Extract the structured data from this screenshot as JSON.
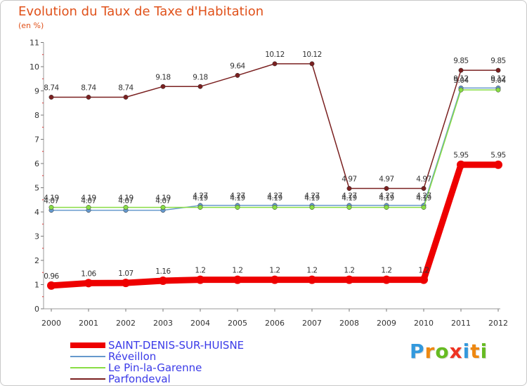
{
  "chart_data": {
    "type": "line",
    "title": "Evolution du Taux de Taxe d'Habitation",
    "subtitle": "(en %)",
    "x": [
      "2000",
      "2001",
      "2002",
      "2003",
      "2004",
      "2005",
      "2006",
      "2007",
      "2008",
      "2009",
      "2010",
      "2011",
      "2012"
    ],
    "ylim": [
      0,
      11
    ],
    "yticks": [
      "0",
      "1",
      "2",
      "3",
      "4",
      "5",
      "6",
      "7",
      "8",
      "9",
      "10",
      "11"
    ],
    "grid": false,
    "legend_position": "bottom-left",
    "series": [
      {
        "name": "SAINT-DENIS-SUR-HUISNE",
        "color": "#ee0000",
        "values": [
          0.96,
          1.06,
          1.07,
          1.16,
          1.2,
          1.2,
          1.2,
          1.2,
          1.2,
          1.2,
          1.2,
          5.95,
          5.95
        ],
        "labels": [
          "0.96",
          "1.06",
          "1.07",
          "1.16",
          "1.2",
          "1.2",
          "1.2",
          "1.2",
          "1.2",
          "1.2",
          "1.2",
          "5.95",
          "5.95"
        ]
      },
      {
        "name": "Réveillon",
        "color": "#6699cc",
        "values": [
          4.07,
          4.07,
          4.07,
          4.07,
          4.27,
          4.27,
          4.27,
          4.27,
          4.27,
          4.27,
          4.27,
          9.12,
          9.12
        ],
        "labels": [
          "4.07",
          "4.07",
          "4.07",
          "4.07",
          "4.27",
          "4.27",
          "4.27",
          "4.27",
          "4.27",
          "4.27",
          "4.27",
          "9.12",
          "9.12"
        ]
      },
      {
        "name": "Le Pin-la-Garenne",
        "color": "#88dd44",
        "values": [
          4.19,
          4.19,
          4.19,
          4.19,
          4.19,
          4.19,
          4.19,
          4.19,
          4.19,
          4.19,
          4.19,
          9.04,
          9.04
        ],
        "labels": [
          "4.19",
          "4.19",
          "4.19",
          "4.19",
          "4.19",
          "4.19",
          "4.19",
          "4.19",
          "4.19",
          "4.19",
          "4.19",
          "9.04",
          "9.04"
        ]
      },
      {
        "name": "Parfondeval",
        "color": "#7a2020",
        "values": [
          8.74,
          8.74,
          8.74,
          9.18,
          9.18,
          9.64,
          10.12,
          10.12,
          4.97,
          4.97,
          4.97,
          9.85,
          9.85
        ],
        "labels": [
          "8.74",
          "8.74",
          "8.74",
          "9.18",
          "9.18",
          "9.64",
          "10.12",
          "10.12",
          "4.97",
          "4.97",
          "4.97",
          "9.85",
          "9.85"
        ]
      }
    ]
  },
  "logo": {
    "letters": [
      "P",
      "r",
      "o",
      "x",
      "i",
      "t",
      "i"
    ],
    "colors": [
      "#3399dd",
      "#ee8811",
      "#66bb22",
      "#ee3322",
      "#3399dd",
      "#ee8811",
      "#66bb22"
    ]
  }
}
